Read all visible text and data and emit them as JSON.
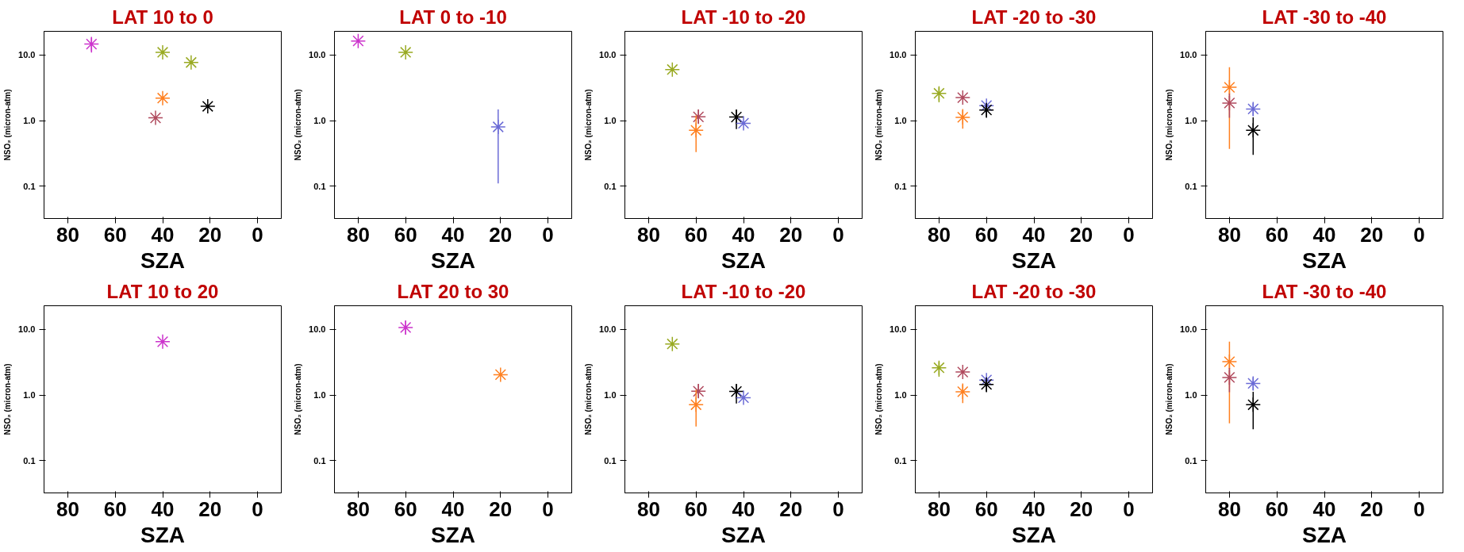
{
  "chart_data": [
    {
      "type": "scatter",
      "title": "LAT 10 to 0",
      "xlabel": "SZA",
      "ylabel": "NSO₂ (micron-atm)",
      "log": "y",
      "grid": false,
      "marker": "cross",
      "xlim": [
        90,
        -10
      ],
      "xticks": [
        80,
        60,
        40,
        20,
        0
      ],
      "ylim": [
        0.032,
        23
      ],
      "yticks": [
        {
          "value": 0.1,
          "label": "0.1"
        },
        {
          "value": 1,
          "label": "1.0"
        },
        {
          "value": 10,
          "label": "10.0"
        }
      ],
      "series": [
        {
          "color": "#cc33cc",
          "x": [
            70
          ],
          "values": [
            14.7
          ],
          "errors": [
            [
              10.9,
              18.4
            ]
          ]
        },
        {
          "color": "#99aa22",
          "x": [
            40,
            28
          ],
          "values": [
            11,
            7.7
          ],
          "errors": [
            null,
            null
          ]
        },
        {
          "color": "#ff8020",
          "x": [
            40
          ],
          "values": [
            2.2
          ],
          "errors": [
            null
          ]
        },
        {
          "color": "#b04a5e",
          "x": [
            43
          ],
          "values": [
            1.1
          ],
          "errors": [
            null
          ]
        },
        {
          "color": "#000000",
          "x": [
            21
          ],
          "values": [
            1.65
          ],
          "errors": [
            null
          ]
        }
      ]
    },
    {
      "type": "scatter",
      "title": "LAT 0 to -10",
      "xlabel": "SZA",
      "ylabel": "NSO₂ (micron-atm)",
      "log": "y",
      "grid": false,
      "marker": "cross",
      "xlim": [
        90,
        -10
      ],
      "xticks": [
        80,
        60,
        40,
        20,
        0
      ],
      "ylim": [
        0.032,
        23
      ],
      "yticks": [
        {
          "value": 0.1,
          "label": "0.1"
        },
        {
          "value": 1,
          "label": "1.0"
        },
        {
          "value": 10,
          "label": "10.0"
        }
      ],
      "series": [
        {
          "color": "#cc33cc",
          "x": [
            80
          ],
          "values": [
            16.4
          ],
          "errors": [
            null
          ]
        },
        {
          "color": "#99aa22",
          "x": [
            60
          ],
          "values": [
            11
          ],
          "errors": [
            null
          ]
        },
        {
          "color": "#6b6bd6",
          "x": [
            21
          ],
          "values": [
            0.8
          ],
          "errors": [
            [
              0.11,
              1.48
            ]
          ]
        }
      ]
    },
    {
      "type": "scatter",
      "title": "LAT -10 to -20",
      "xlabel": "SZA",
      "ylabel": "NSO₂ (micron-atm)",
      "log": "y",
      "grid": false,
      "marker": "cross",
      "xlim": [
        90,
        -10
      ],
      "xticks": [
        80,
        60,
        40,
        20,
        0
      ],
      "ylim": [
        0.032,
        23
      ],
      "yticks": [
        {
          "value": 0.1,
          "label": "0.1"
        },
        {
          "value": 1,
          "label": "1.0"
        },
        {
          "value": 10,
          "label": "10.0"
        }
      ],
      "series": [
        {
          "color": "#99aa22",
          "x": [
            70
          ],
          "values": [
            6.0
          ],
          "errors": [
            null
          ]
        },
        {
          "color": "#b04a5e",
          "x": [
            59
          ],
          "values": [
            1.14
          ],
          "errors": [
            [
              0.9,
              1.48
            ]
          ]
        },
        {
          "color": "#ff8020",
          "x": [
            60
          ],
          "values": [
            0.71
          ],
          "errors": [
            [
              0.33,
              1.2
            ]
          ]
        },
        {
          "color": "#000000",
          "x": [
            43
          ],
          "values": [
            1.13
          ],
          "errors": [
            [
              0.74,
              1.48
            ]
          ]
        },
        {
          "color": "#6b6bd6",
          "x": [
            40
          ],
          "values": [
            0.91
          ],
          "errors": [
            null
          ]
        }
      ]
    },
    {
      "type": "scatter",
      "title": "LAT -20 to -30",
      "xlabel": "SZA",
      "ylabel": "NSO₂ (micron-atm)",
      "log": "y",
      "grid": false,
      "marker": "cross",
      "xlim": [
        90,
        -10
      ],
      "xticks": [
        80,
        60,
        40,
        20,
        0
      ],
      "ylim": [
        0.032,
        23
      ],
      "yticks": [
        {
          "value": 0.1,
          "label": "0.1"
        },
        {
          "value": 1,
          "label": "1.0"
        },
        {
          "value": 10,
          "label": "10.0"
        }
      ],
      "series": [
        {
          "color": "#99aa22",
          "x": [
            80
          ],
          "values": [
            2.6
          ],
          "errors": [
            [
              1.9,
              3.2
            ]
          ]
        },
        {
          "color": "#b04a5e",
          "x": [
            70
          ],
          "values": [
            2.24
          ],
          "errors": [
            null
          ]
        },
        {
          "color": "#ff8020",
          "x": [
            70
          ],
          "values": [
            1.12
          ],
          "errors": [
            [
              0.75,
              1.5
            ]
          ]
        },
        {
          "color": "#6b6bd6",
          "x": [
            60
          ],
          "values": [
            1.69
          ],
          "errors": [
            null
          ]
        },
        {
          "color": "#000000",
          "x": [
            60
          ],
          "values": [
            1.45
          ],
          "errors": [
            [
              1.1,
              1.7
            ]
          ]
        }
      ]
    },
    {
      "type": "scatter",
      "title": "LAT -30 to -40",
      "xlabel": "SZA",
      "ylabel": "NSO₂ (micron-atm)",
      "log": "y",
      "grid": false,
      "marker": "cross",
      "xlim": [
        90,
        -10
      ],
      "xticks": [
        80,
        60,
        40,
        20,
        0
      ],
      "ylim": [
        0.032,
        23
      ],
      "yticks": [
        {
          "value": 0.1,
          "label": "0.1"
        },
        {
          "value": 1,
          "label": "1.0"
        },
        {
          "value": 10,
          "label": "10.0"
        }
      ],
      "series": [
        {
          "color": "#ff8020",
          "x": [
            80
          ],
          "values": [
            3.22
          ],
          "errors": [
            [
              0.37,
              6.5
            ]
          ]
        },
        {
          "color": "#b04a5e",
          "x": [
            80
          ],
          "values": [
            1.85
          ],
          "errors": [
            [
              1.1,
              2.58
            ]
          ]
        },
        {
          "color": "#6b6bd6",
          "x": [
            70
          ],
          "values": [
            1.5
          ],
          "errors": [
            [
              1.18,
              1.86
            ]
          ]
        },
        {
          "color": "#000000",
          "x": [
            70
          ],
          "values": [
            0.71
          ],
          "errors": [
            [
              0.3,
              1.12
            ]
          ]
        }
      ]
    },
    {
      "type": "scatter",
      "title": "LAT 10 to 20",
      "xlabel": "SZA",
      "ylabel": "NSO₂ (micron-atm)",
      "log": "y",
      "grid": false,
      "marker": "cross",
      "xlim": [
        90,
        -10
      ],
      "xticks": [
        80,
        60,
        40,
        20,
        0
      ],
      "ylim": [
        0.032,
        23
      ],
      "yticks": [
        {
          "value": 0.1,
          "label": "0.1"
        },
        {
          "value": 1,
          "label": "1.0"
        },
        {
          "value": 10,
          "label": "10.0"
        }
      ],
      "series": [
        {
          "color": "#cc33cc",
          "x": [
            40
          ],
          "values": [
            6.5
          ],
          "errors": [
            null
          ]
        }
      ]
    },
    {
      "type": "scatter",
      "title": "LAT 20 to 30",
      "xlabel": "SZA",
      "ylabel": "NSO₂ (micron-atm)",
      "log": "y",
      "grid": false,
      "marker": "cross",
      "xlim": [
        90,
        -10
      ],
      "xticks": [
        80,
        60,
        40,
        20,
        0
      ],
      "ylim": [
        0.032,
        23
      ],
      "yticks": [
        {
          "value": 0.1,
          "label": "0.1"
        },
        {
          "value": 1,
          "label": "1.0"
        },
        {
          "value": 10,
          "label": "10.0"
        }
      ],
      "series": [
        {
          "color": "#cc33cc",
          "x": [
            60
          ],
          "values": [
            10.7
          ],
          "errors": [
            [
              8.4,
              13.5
            ]
          ]
        },
        {
          "color": "#ff8020",
          "x": [
            20
          ],
          "values": [
            2.04
          ],
          "errors": [
            null
          ]
        }
      ]
    },
    {
      "type": "scatter",
      "title": "LAT -10 to -20",
      "xlabel": "SZA",
      "ylabel": "NSO₂ (micron-atm)",
      "log": "y",
      "grid": false,
      "marker": "cross",
      "xlim": [
        90,
        -10
      ],
      "xticks": [
        80,
        60,
        40,
        20,
        0
      ],
      "ylim": [
        0.032,
        23
      ],
      "yticks": [
        {
          "value": 0.1,
          "label": "0.1"
        },
        {
          "value": 1,
          "label": "1.0"
        },
        {
          "value": 10,
          "label": "10.0"
        }
      ],
      "series": [
        {
          "color": "#99aa22",
          "x": [
            70
          ],
          "values": [
            6.0
          ],
          "errors": [
            null
          ]
        },
        {
          "color": "#b04a5e",
          "x": [
            59
          ],
          "values": [
            1.14
          ],
          "errors": [
            [
              0.9,
              1.48
            ]
          ]
        },
        {
          "color": "#ff8020",
          "x": [
            60
          ],
          "values": [
            0.71
          ],
          "errors": [
            [
              0.33,
              1.2
            ]
          ]
        },
        {
          "color": "#000000",
          "x": [
            43
          ],
          "values": [
            1.13
          ],
          "errors": [
            [
              0.74,
              1.48
            ]
          ]
        },
        {
          "color": "#6b6bd6",
          "x": [
            40
          ],
          "values": [
            0.91
          ],
          "errors": [
            null
          ]
        }
      ]
    },
    {
      "type": "scatter",
      "title": "LAT -20 to -30",
      "xlabel": "SZA",
      "ylabel": "NSO₂ (micron-atm)",
      "log": "y",
      "grid": false,
      "marker": "cross",
      "xlim": [
        90,
        -10
      ],
      "xticks": [
        80,
        60,
        40,
        20,
        0
      ],
      "ylim": [
        0.032,
        23
      ],
      "yticks": [
        {
          "value": 0.1,
          "label": "0.1"
        },
        {
          "value": 1,
          "label": "1.0"
        },
        {
          "value": 10,
          "label": "10.0"
        }
      ],
      "series": [
        {
          "color": "#99aa22",
          "x": [
            80
          ],
          "values": [
            2.6
          ],
          "errors": [
            [
              1.9,
              3.2
            ]
          ]
        },
        {
          "color": "#b04a5e",
          "x": [
            70
          ],
          "values": [
            2.24
          ],
          "errors": [
            null
          ]
        },
        {
          "color": "#ff8020",
          "x": [
            70
          ],
          "values": [
            1.12
          ],
          "errors": [
            [
              0.75,
              1.5
            ]
          ]
        },
        {
          "color": "#6b6bd6",
          "x": [
            60
          ],
          "values": [
            1.69
          ],
          "errors": [
            null
          ]
        },
        {
          "color": "#000000",
          "x": [
            60
          ],
          "values": [
            1.45
          ],
          "errors": [
            [
              1.1,
              1.7
            ]
          ]
        }
      ]
    },
    {
      "type": "scatter",
      "title": "LAT -30 to -40",
      "xlabel": "SZA",
      "ylabel": "NSO₂ (micron-atm)",
      "log": "y",
      "grid": false,
      "marker": "cross",
      "xlim": [
        90,
        -10
      ],
      "xticks": [
        80,
        60,
        40,
        20,
        0
      ],
      "ylim": [
        0.032,
        23
      ],
      "yticks": [
        {
          "value": 0.1,
          "label": "0.1"
        },
        {
          "value": 1,
          "label": "1.0"
        },
        {
          "value": 10,
          "label": "10.0"
        }
      ],
      "series": [
        {
          "color": "#ff8020",
          "x": [
            80
          ],
          "values": [
            3.22
          ],
          "errors": [
            [
              0.37,
              6.5
            ]
          ]
        },
        {
          "color": "#b04a5e",
          "x": [
            80
          ],
          "values": [
            1.85
          ],
          "errors": [
            [
              1.1,
              2.58
            ]
          ]
        },
        {
          "color": "#6b6bd6",
          "x": [
            70
          ],
          "values": [
            1.5
          ],
          "errors": [
            [
              1.18,
              1.86
            ]
          ]
        },
        {
          "color": "#000000",
          "x": [
            70
          ],
          "values": [
            0.71
          ],
          "errors": [
            [
              0.3,
              1.12
            ]
          ]
        }
      ]
    }
  ]
}
